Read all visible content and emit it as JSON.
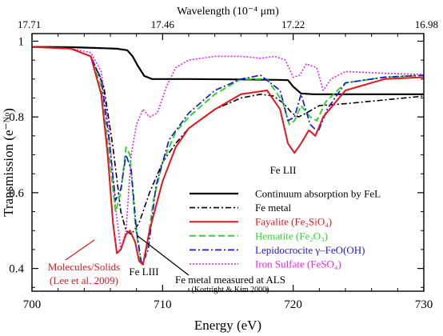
{
  "chart_data": {
    "type": "line",
    "xlabel": "Energy (eV)",
    "ylabel": "Transmission (e⁻ᴺᵒ)",
    "top_axis_label": "Wavelength (10⁻⁴ μm)",
    "xlim": [
      700,
      730
    ],
    "ylim": [
      0.34,
      1.02
    ],
    "x_ticks": [
      "700",
      "710",
      "720",
      "730"
    ],
    "y_ticks": [
      "0.4",
      "0.6",
      "0.8",
      "1"
    ],
    "top_ticks": [
      "17.71",
      "17.46",
      "17.22",
      "16.98"
    ],
    "grid": false,
    "legend_position": "lower-right",
    "annotations": {
      "fe_lii": "Fe LII",
      "fe_liii": "Fe LIII",
      "mol_solids_1": "Molecules/Solids",
      "mol_solids_2": "(Lee et al. 2009)",
      "fe_metal_als_1": "Fe metal measured at ALS",
      "fe_metal_als_2": "(Kortright & Kim 2000)"
    },
    "series": [
      {
        "name": "Continuum absorption by FeL",
        "color": "#000000",
        "dash": "",
        "width": 2.2,
        "points": [
          [
            700,
            0.985
          ],
          [
            703,
            0.984
          ],
          [
            705,
            0.982
          ],
          [
            706.5,
            0.98
          ],
          [
            707.3,
            0.976
          ],
          [
            707.7,
            0.96
          ],
          [
            708.1,
            0.935
          ],
          [
            708.6,
            0.908
          ],
          [
            709.2,
            0.9
          ],
          [
            712,
            0.9
          ],
          [
            716,
            0.899
          ],
          [
            718.8,
            0.898
          ],
          [
            719.6,
            0.897
          ],
          [
            720,
            0.88
          ],
          [
            720.6,
            0.862
          ],
          [
            721.5,
            0.86
          ],
          [
            730,
            0.86
          ]
        ]
      },
      {
        "name": "Fe metal",
        "color": "#000000",
        "dash": "7,3,2,3",
        "width": 1.6,
        "points": [
          [
            700,
            0.985
          ],
          [
            703,
            0.98
          ],
          [
            704.5,
            0.96
          ],
          [
            705.5,
            0.88
          ],
          [
            706.2,
            0.72
          ],
          [
            706.8,
            0.55
          ],
          [
            707.2,
            0.5
          ],
          [
            707.6,
            0.49
          ],
          [
            708.2,
            0.52
          ],
          [
            709,
            0.6
          ],
          [
            710,
            0.68
          ],
          [
            711,
            0.73
          ],
          [
            712,
            0.77
          ],
          [
            714,
            0.82
          ],
          [
            716,
            0.85
          ],
          [
            717.5,
            0.86
          ],
          [
            718.5,
            0.855
          ],
          [
            719.3,
            0.835
          ],
          [
            719.9,
            0.81
          ],
          [
            720.4,
            0.8
          ],
          [
            721,
            0.81
          ],
          [
            722,
            0.83
          ],
          [
            724,
            0.835
          ],
          [
            727,
            0.845
          ],
          [
            730,
            0.855
          ]
        ]
      },
      {
        "name": "Fayalite (Fe₂SiO₄)",
        "color": "#e8141e",
        "dash": "",
        "width": 2.0,
        "points": [
          [
            700,
            0.985
          ],
          [
            703,
            0.98
          ],
          [
            704.5,
            0.96
          ],
          [
            705.3,
            0.86
          ],
          [
            705.8,
            0.7
          ],
          [
            706.2,
            0.52
          ],
          [
            706.5,
            0.44
          ],
          [
            706.8,
            0.45
          ],
          [
            707.2,
            0.49
          ],
          [
            707.5,
            0.5
          ],
          [
            707.9,
            0.47
          ],
          [
            708.2,
            0.42
          ],
          [
            708.5,
            0.41
          ],
          [
            709,
            0.5
          ],
          [
            710,
            0.63
          ],
          [
            711,
            0.72
          ],
          [
            712,
            0.77
          ],
          [
            714,
            0.82
          ],
          [
            716,
            0.86
          ],
          [
            718,
            0.87
          ],
          [
            719,
            0.82
          ],
          [
            719.6,
            0.73
          ],
          [
            720.1,
            0.705
          ],
          [
            720.6,
            0.73
          ],
          [
            721.2,
            0.765
          ],
          [
            721.7,
            0.75
          ],
          [
            722.3,
            0.8
          ],
          [
            724,
            0.87
          ],
          [
            727,
            0.9
          ],
          [
            730,
            0.905
          ]
        ]
      },
      {
        "name": "Hematite (Fe₂O₃)",
        "color": "#2ed62e",
        "dash": "8,4",
        "width": 2.0,
        "points": [
          [
            700,
            0.985
          ],
          [
            703,
            0.98
          ],
          [
            704.5,
            0.96
          ],
          [
            705.3,
            0.88
          ],
          [
            705.9,
            0.7
          ],
          [
            706.4,
            0.55
          ],
          [
            706.8,
            0.6
          ],
          [
            707.2,
            0.72
          ],
          [
            707.5,
            0.7
          ],
          [
            707.9,
            0.52
          ],
          [
            708.3,
            0.42
          ],
          [
            708.7,
            0.43
          ],
          [
            709.3,
            0.58
          ],
          [
            710,
            0.68
          ],
          [
            711,
            0.76
          ],
          [
            712,
            0.8
          ],
          [
            714,
            0.86
          ],
          [
            716,
            0.9
          ],
          [
            718,
            0.9
          ],
          [
            719.2,
            0.84
          ],
          [
            719.7,
            0.78
          ],
          [
            720.1,
            0.79
          ],
          [
            720.6,
            0.83
          ],
          [
            721.3,
            0.8
          ],
          [
            721.8,
            0.79
          ],
          [
            722.5,
            0.84
          ],
          [
            724,
            0.89
          ],
          [
            727,
            0.905
          ],
          [
            730,
            0.91
          ]
        ]
      },
      {
        "name": "Lepidocrocite γ–FeO(OH)",
        "color": "#1a1ad6",
        "dash": "8,3,2,3",
        "width": 1.7,
        "points": [
          [
            700,
            0.985
          ],
          [
            703,
            0.98
          ],
          [
            704.5,
            0.96
          ],
          [
            705.3,
            0.9
          ],
          [
            705.9,
            0.74
          ],
          [
            706.4,
            0.58
          ],
          [
            706.8,
            0.61
          ],
          [
            707.2,
            0.7
          ],
          [
            707.6,
            0.66
          ],
          [
            708,
            0.5
          ],
          [
            708.4,
            0.41
          ],
          [
            708.9,
            0.45
          ],
          [
            709.5,
            0.62
          ],
          [
            710.5,
            0.74
          ],
          [
            712,
            0.81
          ],
          [
            714,
            0.87
          ],
          [
            716,
            0.9
          ],
          [
            717.5,
            0.91
          ],
          [
            719,
            0.87
          ],
          [
            719.6,
            0.79
          ],
          [
            720.1,
            0.8
          ],
          [
            720.6,
            0.86
          ],
          [
            721.3,
            0.78
          ],
          [
            721.9,
            0.76
          ],
          [
            722.6,
            0.82
          ],
          [
            724,
            0.89
          ],
          [
            727,
            0.905
          ],
          [
            730,
            0.91
          ]
        ]
      },
      {
        "name": "Iron Sulfate (FeSO₄)",
        "color": "#ee22ee",
        "dash": "2,2",
        "width": 1.6,
        "points": [
          [
            700,
            0.985
          ],
          [
            703,
            0.98
          ],
          [
            704.5,
            0.97
          ],
          [
            705.3,
            0.92
          ],
          [
            705.9,
            0.76
          ],
          [
            706.4,
            0.56
          ],
          [
            706.8,
            0.45
          ],
          [
            707.2,
            0.5
          ],
          [
            707.6,
            0.7
          ],
          [
            708,
            0.78
          ],
          [
            708.5,
            0.82
          ],
          [
            709,
            0.8
          ],
          [
            709.6,
            0.81
          ],
          [
            710.3,
            0.88
          ],
          [
            711,
            0.93
          ],
          [
            712,
            0.95
          ],
          [
            714,
            0.96
          ],
          [
            716,
            0.96
          ],
          [
            717.5,
            0.955
          ],
          [
            718.6,
            0.96
          ],
          [
            719.4,
            0.95
          ],
          [
            720,
            0.905
          ],
          [
            720.5,
            0.91
          ],
          [
            721,
            0.94
          ],
          [
            721.8,
            0.93
          ],
          [
            722.3,
            0.87
          ],
          [
            722.9,
            0.9
          ],
          [
            724,
            0.92
          ],
          [
            727,
            0.915
          ],
          [
            730,
            0.912
          ]
        ]
      }
    ]
  }
}
